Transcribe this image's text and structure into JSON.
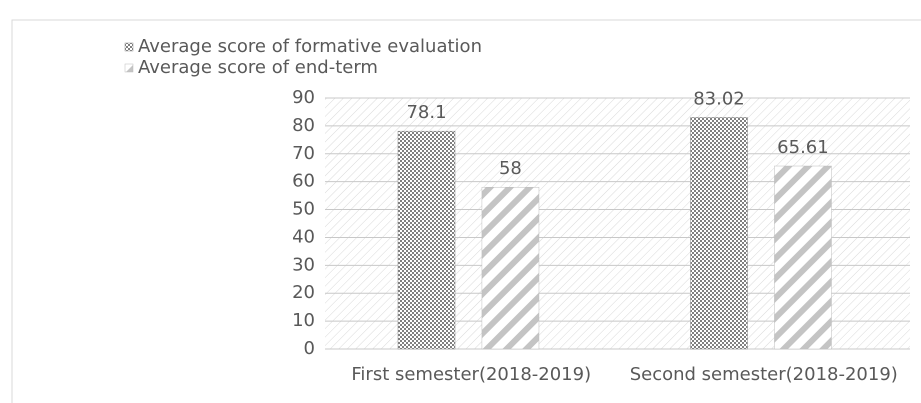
{
  "chart_data": {
    "type": "bar",
    "categories": [
      "First semester(2018-2019)",
      "Second semester(2018-2019)"
    ],
    "series": [
      {
        "name": "Average score of formative evaluation",
        "color": "#8c8c8c",
        "values": [
          78.1,
          83.02
        ]
      },
      {
        "name": "Average score of end-term",
        "color": "#bdbdbd",
        "values": [
          58,
          65.61
        ]
      }
    ],
    "ylim": [
      0,
      90
    ],
    "yticks": [
      0,
      10,
      20,
      30,
      40,
      50,
      60,
      70,
      80,
      90
    ],
    "grid": true,
    "legend": "top-left"
  }
}
